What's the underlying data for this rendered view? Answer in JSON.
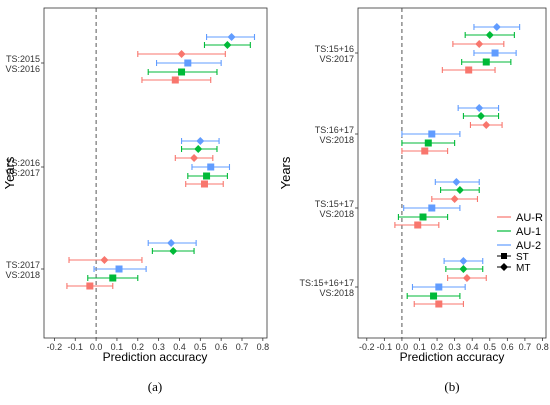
{
  "chart_data": [
    {
      "type": "scatter",
      "subplot_label": "(a)",
      "xlabel": "Prediction accuracy",
      "ylabel": "Years",
      "xlim": [
        -0.25,
        0.82
      ],
      "xticks": [
        -0.2,
        -0.1,
        0.0,
        0.1,
        0.2,
        0.3,
        0.4,
        0.5,
        0.6,
        0.7,
        0.8
      ],
      "xtick_labels": [
        "-0.2",
        "-0.1",
        "0.0",
        "0.1",
        "0.2",
        "0.3",
        "0.4",
        "0.5",
        "0.6",
        "0.7",
        "0.8"
      ],
      "reference_line_x": 0,
      "grid": false,
      "groups": [
        {
          "label_line1": "TS:2015",
          "label_line2": "VS:2016",
          "points": [
            {
              "series": "AU-2",
              "marker": "MT",
              "mean": 0.65,
              "lo": 0.53,
              "hi": 0.76
            },
            {
              "series": "AU-1",
              "marker": "MT",
              "mean": 0.63,
              "lo": 0.52,
              "hi": 0.74
            },
            {
              "series": "AU-R",
              "marker": "MT",
              "mean": 0.41,
              "lo": 0.2,
              "hi": 0.62
            },
            {
              "series": "AU-2",
              "marker": "ST",
              "mean": 0.44,
              "lo": 0.29,
              "hi": 0.6
            },
            {
              "series": "AU-1",
              "marker": "ST",
              "mean": 0.41,
              "lo": 0.25,
              "hi": 0.58
            },
            {
              "series": "AU-R",
              "marker": "ST",
              "mean": 0.38,
              "lo": 0.22,
              "hi": 0.55
            }
          ]
        },
        {
          "label_line1": "TS:2016",
          "label_line2": "VS:2017",
          "points": [
            {
              "series": "AU-2",
              "marker": "MT",
              "mean": 0.5,
              "lo": 0.41,
              "hi": 0.59
            },
            {
              "series": "AU-1",
              "marker": "MT",
              "mean": 0.49,
              "lo": 0.41,
              "hi": 0.58
            },
            {
              "series": "AU-R",
              "marker": "MT",
              "mean": 0.47,
              "lo": 0.38,
              "hi": 0.56
            },
            {
              "series": "AU-2",
              "marker": "ST",
              "mean": 0.55,
              "lo": 0.46,
              "hi": 0.64
            },
            {
              "series": "AU-1",
              "marker": "ST",
              "mean": 0.53,
              "lo": 0.44,
              "hi": 0.63
            },
            {
              "series": "AU-R",
              "marker": "ST",
              "mean": 0.52,
              "lo": 0.43,
              "hi": 0.61
            }
          ]
        },
        {
          "label_line1": "TS:2017",
          "label_line2": "VS:2018",
          "points": [
            {
              "series": "AU-2",
              "marker": "MT",
              "mean": 0.36,
              "lo": 0.25,
              "hi": 0.48
            },
            {
              "series": "AU-1",
              "marker": "MT",
              "mean": 0.37,
              "lo": 0.27,
              "hi": 0.47
            },
            {
              "series": "AU-R",
              "marker": "MT",
              "mean": 0.04,
              "lo": -0.13,
              "hi": 0.22
            },
            {
              "series": "AU-2",
              "marker": "ST",
              "mean": 0.11,
              "lo": -0.01,
              "hi": 0.24
            },
            {
              "series": "AU-1",
              "marker": "ST",
              "mean": 0.08,
              "lo": -0.04,
              "hi": 0.2
            },
            {
              "series": "AU-R",
              "marker": "ST",
              "mean": -0.03,
              "lo": -0.14,
              "hi": 0.08
            }
          ]
        }
      ]
    },
    {
      "type": "scatter",
      "subplot_label": "(b)",
      "xlabel": "Prediction accuracy",
      "ylabel": "Years",
      "xlim": [
        -0.25,
        0.82
      ],
      "xticks": [
        -0.2,
        -0.1,
        0.0,
        0.1,
        0.2,
        0.3,
        0.4,
        0.5,
        0.6,
        0.7,
        0.8
      ],
      "xtick_labels": [
        "-0.2",
        "-0.1",
        "0.0",
        "0.1",
        "0.2",
        "0.3",
        "0.4",
        "0.5",
        "0.6",
        "0.7",
        "0.8"
      ],
      "reference_line_x": 0,
      "grid": false,
      "legend": {
        "placement": "right",
        "series": [
          {
            "name": "AU-R",
            "color": "#F8766D"
          },
          {
            "name": "AU-1",
            "color": "#00BA38"
          },
          {
            "name": "AU-2",
            "color": "#619CFF"
          }
        ],
        "markers": [
          {
            "name": "ST",
            "shape": "square"
          },
          {
            "name": "MT",
            "shape": "diamond"
          }
        ]
      },
      "groups": [
        {
          "label_line1": "TS:15+16",
          "label_line2": "VS:2017",
          "points": [
            {
              "series": "AU-2",
              "marker": "MT",
              "mean": 0.54,
              "lo": 0.41,
              "hi": 0.67
            },
            {
              "series": "AU-1",
              "marker": "MT",
              "mean": 0.5,
              "lo": 0.36,
              "hi": 0.64
            },
            {
              "series": "AU-R",
              "marker": "MT",
              "mean": 0.44,
              "lo": 0.29,
              "hi": 0.58
            },
            {
              "series": "AU-2",
              "marker": "ST",
              "mean": 0.53,
              "lo": 0.41,
              "hi": 0.65
            },
            {
              "series": "AU-1",
              "marker": "ST",
              "mean": 0.48,
              "lo": 0.34,
              "hi": 0.62
            },
            {
              "series": "AU-R",
              "marker": "ST",
              "mean": 0.38,
              "lo": 0.23,
              "hi": 0.53
            }
          ]
        },
        {
          "label_line1": "TS:16+17",
          "label_line2": "VS:2018",
          "points": [
            {
              "series": "AU-2",
              "marker": "MT",
              "mean": 0.44,
              "lo": 0.32,
              "hi": 0.55
            },
            {
              "series": "AU-1",
              "marker": "MT",
              "mean": 0.45,
              "lo": 0.35,
              "hi": 0.55
            },
            {
              "series": "AU-R",
              "marker": "MT",
              "mean": 0.48,
              "lo": 0.39,
              "hi": 0.57
            },
            {
              "series": "AU-2",
              "marker": "ST",
              "mean": 0.17,
              "lo": 0.0,
              "hi": 0.33
            },
            {
              "series": "AU-1",
              "marker": "ST",
              "mean": 0.15,
              "lo": 0.0,
              "hi": 0.3
            },
            {
              "series": "AU-R",
              "marker": "ST",
              "mean": 0.13,
              "lo": 0.0,
              "hi": 0.26
            }
          ]
        },
        {
          "label_line1": "TS:15+17",
          "label_line2": "VS:2018",
          "points": [
            {
              "series": "AU-2",
              "marker": "MT",
              "mean": 0.31,
              "lo": 0.19,
              "hi": 0.44
            },
            {
              "series": "AU-1",
              "marker": "MT",
              "mean": 0.33,
              "lo": 0.22,
              "hi": 0.44
            },
            {
              "series": "AU-R",
              "marker": "MT",
              "mean": 0.3,
              "lo": 0.17,
              "hi": 0.43
            },
            {
              "series": "AU-2",
              "marker": "ST",
              "mean": 0.17,
              "lo": 0.01,
              "hi": 0.33
            },
            {
              "series": "AU-1",
              "marker": "ST",
              "mean": 0.12,
              "lo": -0.02,
              "hi": 0.26
            },
            {
              "series": "AU-R",
              "marker": "ST",
              "mean": 0.09,
              "lo": -0.04,
              "hi": 0.21
            }
          ]
        },
        {
          "label_line1": "TS:15+16+17",
          "label_line2": "VS:2018",
          "points": [
            {
              "series": "AU-2",
              "marker": "MT",
              "mean": 0.35,
              "lo": 0.24,
              "hi": 0.46
            },
            {
              "series": "AU-1",
              "marker": "MT",
              "mean": 0.35,
              "lo": 0.25,
              "hi": 0.46
            },
            {
              "series": "AU-R",
              "marker": "MT",
              "mean": 0.37,
              "lo": 0.26,
              "hi": 0.48
            },
            {
              "series": "AU-2",
              "marker": "ST",
              "mean": 0.21,
              "lo": 0.06,
              "hi": 0.36
            },
            {
              "series": "AU-1",
              "marker": "ST",
              "mean": 0.18,
              "lo": 0.03,
              "hi": 0.33
            },
            {
              "series": "AU-R",
              "marker": "ST",
              "mean": 0.21,
              "lo": 0.07,
              "hi": 0.35
            }
          ]
        }
      ]
    }
  ]
}
